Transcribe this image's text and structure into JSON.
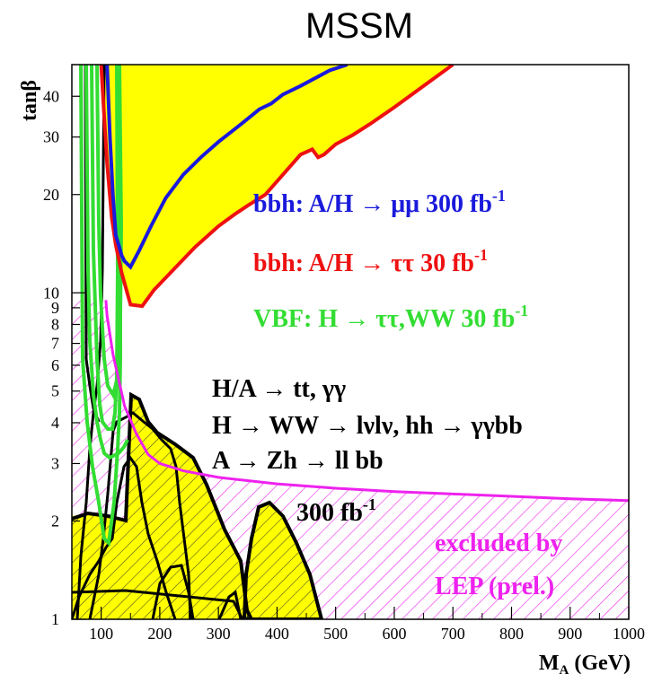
{
  "chart_data": {
    "type": "area",
    "title": "MSSM",
    "xlabel": {
      "main": "M",
      "sub": "A",
      "unit": " (GeV)"
    },
    "ylabel": "tanβ",
    "xlim": [
      50,
      1000
    ],
    "ylim": [
      1,
      50
    ],
    "yscale": "log",
    "xticks": [
      100,
      200,
      300,
      400,
      500,
      600,
      700,
      800,
      900,
      1000
    ],
    "yticks": [
      1,
      2,
      3,
      4,
      5,
      6,
      7,
      8,
      9,
      10,
      20,
      30,
      40
    ],
    "colors": {
      "yellow": "#ffff00",
      "blue": "#1a1adc",
      "red": "#ee1111",
      "green": "#33dd33",
      "magenta": "#ee22ee",
      "black": "#000000"
    },
    "series": [
      {
        "color": "red",
        "fill": "yellow",
        "points": [
          [
            100,
            50
          ],
          [
            105,
            35
          ],
          [
            110,
            25
          ],
          [
            118,
            17
          ],
          [
            125,
            14
          ],
          [
            135,
            11.5
          ],
          [
            150,
            9.2
          ],
          [
            170,
            9.1
          ],
          [
            190,
            10.2
          ],
          [
            220,
            11.6
          ],
          [
            260,
            13.8
          ],
          [
            300,
            16
          ],
          [
            330,
            17.5
          ],
          [
            350,
            18.5
          ],
          [
            380,
            20
          ],
          [
            410,
            23
          ],
          [
            440,
            26.5
          ],
          [
            460,
            27.5
          ],
          [
            470,
            26
          ],
          [
            480,
            26.5
          ],
          [
            500,
            28.5
          ],
          [
            530,
            30.5
          ],
          [
            560,
            33
          ],
          [
            600,
            37
          ],
          [
            650,
            43
          ],
          [
            700,
            50
          ]
        ]
      },
      {
        "color": "blue",
        "points": [
          [
            110,
            50
          ],
          [
            115,
            30
          ],
          [
            120,
            20
          ],
          [
            125,
            15
          ],
          [
            130,
            14
          ],
          [
            135,
            13
          ],
          [
            140,
            12.5
          ],
          [
            150,
            12
          ],
          [
            165,
            13.5
          ],
          [
            185,
            16
          ],
          [
            210,
            19.5
          ],
          [
            240,
            23
          ],
          [
            270,
            26
          ],
          [
            300,
            29
          ],
          [
            340,
            33
          ],
          [
            370,
            36.5
          ],
          [
            390,
            38
          ],
          [
            410,
            40.5
          ],
          [
            440,
            43
          ],
          [
            490,
            48
          ],
          [
            520,
            50
          ]
        ]
      },
      {
        "color": "magenta",
        "points": [
          [
            108,
            9.5
          ],
          [
            110,
            8.5
          ],
          [
            120,
            6.5
          ],
          [
            140,
            4.5
          ],
          [
            160,
            3.7
          ],
          [
            180,
            3.2
          ],
          [
            200,
            3.0
          ],
          [
            240,
            2.85
          ],
          [
            300,
            2.72
          ],
          [
            400,
            2.6
          ],
          [
            500,
            2.52
          ],
          [
            600,
            2.46
          ],
          [
            700,
            2.42
          ],
          [
            800,
            2.38
          ],
          [
            900,
            2.34
          ],
          [
            1000,
            2.31
          ]
        ]
      }
    ],
    "annotations": [
      {
        "text": "bbh: A/H → μμ 300 fb",
        "sup": "-1",
        "color": "blue"
      },
      {
        "text": "bbh: A/H → ττ 30 fb",
        "sup": "-1",
        "color": "red"
      },
      {
        "text": "VBF: H → ττ,WW 30 fb",
        "sup": "-1",
        "color": "green"
      },
      {
        "text": "H/A → tt, γγ",
        "color": "black"
      },
      {
        "text": "H → WW → lνlν, hh → γγbb",
        "color": "black"
      },
      {
        "text": "A → Zh → ll bb",
        "color": "black"
      },
      {
        "text": "300 fb",
        "sup": "-1",
        "color": "black"
      },
      {
        "text": "excluded by",
        "color": "magenta"
      },
      {
        "text": "LEP (prel.)",
        "color": "magenta"
      }
    ]
  }
}
